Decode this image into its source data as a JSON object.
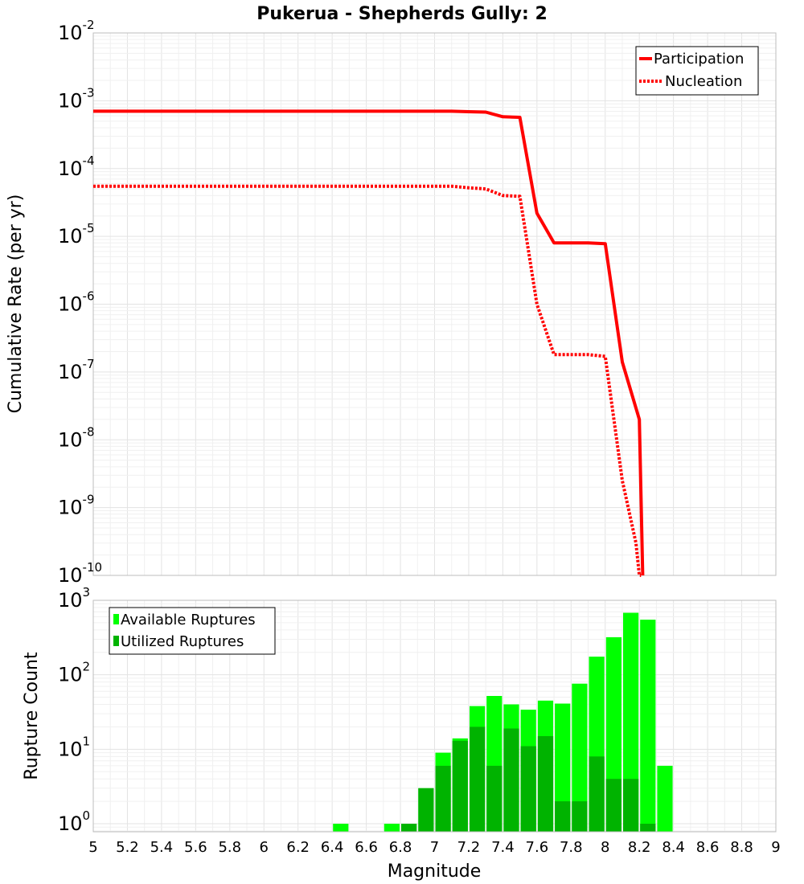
{
  "title": "Pukerua - Shepherds Gully: 2",
  "colors": {
    "participation": "#ff0000",
    "nucleation": "#ff0000",
    "available": "#00ff00",
    "utilized": "#00b300"
  },
  "chart_data": [
    {
      "type": "line",
      "ylabel": "Cumulative Rate (per yr)",
      "yscale": "log",
      "xlim": [
        5,
        9
      ],
      "ylim": [
        1e-10,
        0.01
      ],
      "y_tick_exponents": [
        -2,
        -3,
        -4,
        -5,
        -6,
        -7,
        -8,
        -9,
        -10
      ],
      "grid": true,
      "legend_position": "top-right",
      "series": [
        {
          "name": "Participation",
          "style": "solid",
          "x": [
            5.0,
            5.5,
            6.0,
            6.5,
            7.0,
            7.1,
            7.2,
            7.3,
            7.4,
            7.5,
            7.6,
            7.7,
            7.8,
            7.9,
            8.0,
            8.1,
            8.2,
            8.22
          ],
          "y": [
            0.0007,
            0.0007,
            0.0007,
            0.0007,
            0.0007,
            0.0007,
            0.00069,
            0.00068,
            0.00058,
            0.00057,
            2.2e-05,
            8e-06,
            8e-06,
            8e-06,
            7.8e-06,
            1.4e-07,
            2e-08,
            1e-10
          ]
        },
        {
          "name": "Nucleation",
          "style": "dotted",
          "x": [
            5.0,
            5.5,
            6.0,
            6.5,
            7.0,
            7.1,
            7.2,
            7.3,
            7.4,
            7.5,
            7.6,
            7.7,
            7.8,
            7.9,
            8.0,
            8.1,
            8.18,
            8.2,
            8.21
          ],
          "y": [
            5.5e-05,
            5.5e-05,
            5.5e-05,
            5.5e-05,
            5.5e-05,
            5.5e-05,
            5.2e-05,
            5e-05,
            4e-05,
            3.9e-05,
            1e-06,
            1.8e-07,
            1.8e-07,
            1.8e-07,
            1.7e-07,
            2.5e-09,
            3e-10,
            1e-10,
            1e-10
          ]
        }
      ]
    },
    {
      "type": "bar",
      "xlabel": "Magnitude",
      "ylabel": "Rupture Count",
      "yscale": "log",
      "xlim": [
        5,
        9
      ],
      "ylim": [
        0.78,
        1000
      ],
      "y_tick_exponents": [
        3,
        2,
        1,
        0
      ],
      "x_ticks": [
        "5",
        "5.2",
        "5.4",
        "5.6",
        "5.8",
        "6",
        "6.2",
        "6.4",
        "6.6",
        "6.8",
        "7",
        "7.2",
        "7.4",
        "7.6",
        "7.8",
        "8",
        "8.2",
        "8.4",
        "8.6",
        "8.8",
        "9"
      ],
      "bin_width": 0.1,
      "grid": true,
      "legend_position": "top-left",
      "series": [
        {
          "name": "Available Ruptures",
          "x": [
            6.45,
            6.75,
            6.85,
            6.95,
            7.05,
            7.15,
            7.25,
            7.35,
            7.45,
            7.55,
            7.65,
            7.75,
            7.85,
            7.95,
            8.05,
            8.15,
            8.25,
            8.35
          ],
          "values": [
            1,
            1,
            1,
            3,
            9,
            14,
            38,
            52,
            40,
            34,
            45,
            41,
            76,
            175,
            320,
            680,
            550,
            6
          ]
        },
        {
          "name": "Utilized Ruptures",
          "x": [
            6.85,
            6.95,
            7.05,
            7.15,
            7.25,
            7.35,
            7.45,
            7.55,
            7.65,
            7.75,
            7.85,
            7.95,
            8.05,
            8.15,
            8.25
          ],
          "values": [
            1,
            3,
            6,
            13,
            20,
            6,
            19,
            11,
            15,
            2,
            2,
            8,
            4,
            4,
            1
          ]
        }
      ]
    }
  ]
}
